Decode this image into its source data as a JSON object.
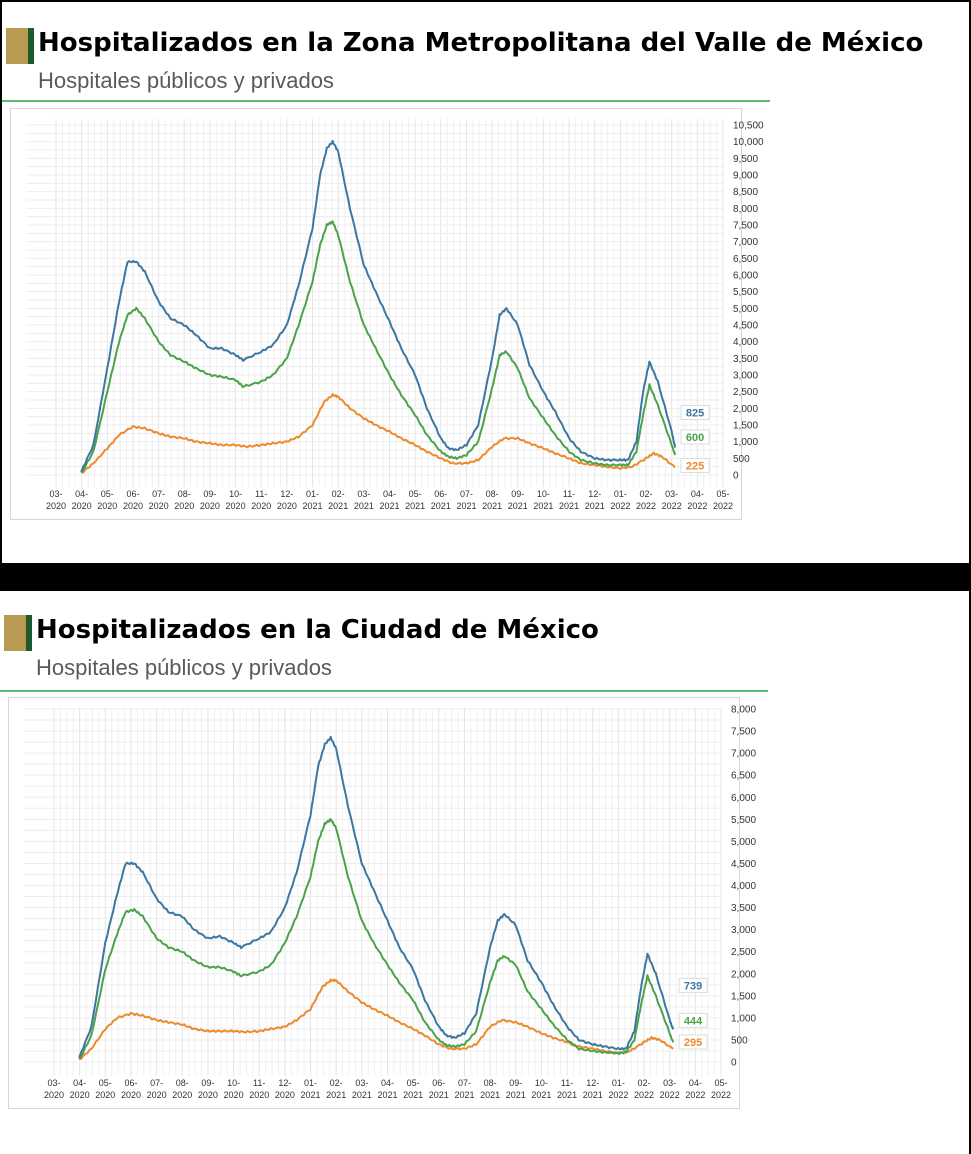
{
  "colors": {
    "total": "#3b77a1",
    "green": "#4aa34a",
    "orange": "#ed8a2c",
    "accent_gold": "#b89a52",
    "accent_green": "#1f5a2c",
    "rule": "#5cb875"
  },
  "panels": [
    {
      "title": "Hospitalizados en la Zona Metropolitana del Valle de México",
      "subtitle": "Hospitales públicos y privados"
    },
    {
      "title": "Hospitalizados en la Ciudad de México",
      "subtitle": "Hospitales públicos y privados"
    }
  ],
  "chart_data": [
    {
      "type": "line",
      "title": "Hospitalizados en la Zona Metropolitana del Valle de México",
      "subtitle": "Hospitales públicos y privados",
      "x_axis": {
        "type": "month",
        "start": "2020-03",
        "end": "2022-05",
        "tick_labels": [
          "03-2020",
          "04-2020",
          "05-2020",
          "06-2020",
          "07-2020",
          "08-2020",
          "09-2020",
          "10-2020",
          "11-2020",
          "12-2020",
          "01-2021",
          "02-2021",
          "03-2021",
          "04-2021",
          "05-2021",
          "06-2021",
          "07-2021",
          "08-2021",
          "09-2021",
          "10-2021",
          "11-2021",
          "12-2021",
          "01-2022",
          "02-2022",
          "03-2022",
          "04-2022",
          "05-2022"
        ]
      },
      "y_axis": {
        "position": "right",
        "min": 0,
        "max": 10500,
        "ticks": [
          0,
          500,
          1000,
          1500,
          2000,
          2500,
          3000,
          3500,
          4000,
          4500,
          5000,
          5500,
          6000,
          6500,
          7000,
          7500,
          8000,
          8500,
          9000,
          9500,
          10000,
          10500
        ],
        "tick_labels": [
          "0",
          "500",
          "1,000",
          "1,500",
          "2,000",
          "2,500",
          "3,000",
          "3,500",
          "4,000",
          "4,500",
          "5,000",
          "5,500",
          "6,000",
          "6,500",
          "7,000",
          "7,500",
          "8,000",
          "8,500",
          "9,000",
          "9,500",
          "10,000",
          "10,500"
        ]
      },
      "grid": true,
      "series": [
        {
          "color": "total",
          "end_label": "825",
          "x": [
            "2020-03-31",
            "2020-04-15",
            "2020-05-01",
            "2020-05-15",
            "2020-05-25",
            "2020-06-05",
            "2020-06-15",
            "2020-07-01",
            "2020-07-15",
            "2020-08-01",
            "2020-08-15",
            "2020-09-01",
            "2020-09-15",
            "2020-10-01",
            "2020-10-10",
            "2020-11-01",
            "2020-11-15",
            "2020-12-01",
            "2020-12-15",
            "2021-01-01",
            "2021-01-10",
            "2021-01-18",
            "2021-01-25",
            "2021-02-01",
            "2021-02-15",
            "2021-03-01",
            "2021-03-15",
            "2021-04-01",
            "2021-04-15",
            "2021-05-01",
            "2021-05-15",
            "2021-06-01",
            "2021-06-10",
            "2021-06-20",
            "2021-07-01",
            "2021-07-15",
            "2021-08-01",
            "2021-08-10",
            "2021-08-18",
            "2021-09-01",
            "2021-09-15",
            "2021-10-01",
            "2021-10-15",
            "2021-11-01",
            "2021-11-15",
            "2021-12-01",
            "2021-12-15",
            "2022-01-01",
            "2022-01-10",
            "2022-01-20",
            "2022-01-28",
            "2022-02-05",
            "2022-02-15",
            "2022-03-01",
            "2022-03-05"
          ],
          "y": [
            100,
            900,
            3200,
            5200,
            6400,
            6400,
            6100,
            5200,
            4700,
            4500,
            4200,
            3800,
            3800,
            3600,
            3450,
            3700,
            3900,
            4500,
            5700,
            7400,
            9000,
            9800,
            10000,
            9700,
            8000,
            6300,
            5500,
            4600,
            3800,
            3000,
            2000,
            1100,
            800,
            750,
            900,
            1500,
            3500,
            4800,
            5000,
            4500,
            3300,
            2500,
            1900,
            1100,
            700,
            500,
            450,
            450,
            450,
            1000,
            2500,
            3400,
            2800,
            1300,
            825
          ]
        },
        {
          "color": "green",
          "end_label": "600",
          "x": [
            "2020-03-31",
            "2020-04-15",
            "2020-05-01",
            "2020-05-15",
            "2020-05-25",
            "2020-06-05",
            "2020-06-15",
            "2020-07-01",
            "2020-07-15",
            "2020-08-01",
            "2020-08-15",
            "2020-09-01",
            "2020-09-15",
            "2020-10-01",
            "2020-10-10",
            "2020-11-01",
            "2020-11-15",
            "2020-12-01",
            "2020-12-15",
            "2021-01-01",
            "2021-01-10",
            "2021-01-18",
            "2021-01-25",
            "2021-02-01",
            "2021-02-15",
            "2021-03-01",
            "2021-03-15",
            "2021-04-01",
            "2021-04-15",
            "2021-05-01",
            "2021-05-15",
            "2021-06-01",
            "2021-06-10",
            "2021-06-20",
            "2021-07-01",
            "2021-07-15",
            "2021-08-01",
            "2021-08-10",
            "2021-08-18",
            "2021-09-01",
            "2021-09-15",
            "2021-10-01",
            "2021-10-15",
            "2021-11-01",
            "2021-11-15",
            "2021-12-01",
            "2021-12-15",
            "2022-01-01",
            "2022-01-10",
            "2022-01-20",
            "2022-01-28",
            "2022-02-05",
            "2022-02-15",
            "2022-03-01",
            "2022-03-05"
          ],
          "y": [
            50,
            700,
            2500,
            4000,
            4800,
            5000,
            4700,
            4000,
            3600,
            3400,
            3200,
            3000,
            2950,
            2850,
            2650,
            2800,
            3000,
            3500,
            4500,
            5800,
            6900,
            7500,
            7600,
            7200,
            5800,
            4500,
            3800,
            3000,
            2400,
            1800,
            1200,
            700,
            550,
            500,
            600,
            1000,
            2600,
            3600,
            3700,
            3200,
            2300,
            1700,
            1200,
            700,
            450,
            350,
            300,
            300,
            300,
            700,
            1800,
            2700,
            2100,
            900,
            600
          ]
        },
        {
          "color": "orange",
          "end_label": "225",
          "x": [
            "2020-03-31",
            "2020-04-15",
            "2020-05-01",
            "2020-05-15",
            "2020-06-01",
            "2020-06-15",
            "2020-07-01",
            "2020-07-15",
            "2020-08-01",
            "2020-08-15",
            "2020-09-01",
            "2020-09-15",
            "2020-10-01",
            "2020-10-15",
            "2020-11-01",
            "2020-11-15",
            "2020-12-01",
            "2020-12-15",
            "2021-01-01",
            "2021-01-15",
            "2021-01-25",
            "2021-02-01",
            "2021-02-15",
            "2021-03-01",
            "2021-03-15",
            "2021-04-01",
            "2021-04-15",
            "2021-05-01",
            "2021-05-15",
            "2021-06-01",
            "2021-06-15",
            "2021-07-01",
            "2021-07-15",
            "2021-08-01",
            "2021-08-15",
            "2021-09-01",
            "2021-09-15",
            "2021-10-01",
            "2021-10-15",
            "2021-11-01",
            "2021-11-15",
            "2021-12-01",
            "2021-12-15",
            "2022-01-01",
            "2022-01-15",
            "2022-02-01",
            "2022-02-10",
            "2022-02-20",
            "2022-03-05"
          ],
          "y": [
            50,
            350,
            800,
            1200,
            1450,
            1400,
            1250,
            1150,
            1100,
            1000,
            950,
            900,
            900,
            850,
            900,
            950,
            1000,
            1150,
            1500,
            2200,
            2400,
            2350,
            2000,
            1700,
            1500,
            1300,
            1100,
            900,
            700,
            500,
            350,
            350,
            450,
            850,
            1100,
            1100,
            950,
            800,
            650,
            500,
            350,
            300,
            250,
            200,
            250,
            500,
            650,
            550,
            225
          ]
        }
      ]
    },
    {
      "type": "line",
      "title": "Hospitalizados en la Ciudad de México",
      "subtitle": "Hospitales públicos y privados",
      "x_axis": {
        "type": "month",
        "start": "2020-03",
        "end": "2022-05",
        "tick_labels": [
          "03-2020",
          "04-2020",
          "05-2020",
          "06-2020",
          "07-2020",
          "08-2020",
          "09-2020",
          "10-2020",
          "11-2020",
          "12-2020",
          "01-2021",
          "02-2021",
          "03-2021",
          "04-2021",
          "05-2021",
          "06-2021",
          "07-2021",
          "08-2021",
          "09-2021",
          "10-2021",
          "11-2021",
          "12-2021",
          "01-2022",
          "02-2022",
          "03-2022",
          "04-2022",
          "05-2022"
        ]
      },
      "y_axis": {
        "position": "right",
        "min": 0,
        "max": 8000,
        "ticks": [
          0,
          500,
          1000,
          1500,
          2000,
          2500,
          3000,
          3500,
          4000,
          4500,
          5000,
          5500,
          6000,
          6500,
          7000,
          7500,
          8000
        ],
        "tick_labels": [
          "0",
          "500",
          "1,000",
          "1,500",
          "2,000",
          "2,500",
          "3,000",
          "3,500",
          "4,000",
          "4,500",
          "5,000",
          "5,500",
          "6,000",
          "6,500",
          "7,000",
          "7,500",
          "8,000"
        ]
      },
      "grid": true,
      "series": [
        {
          "color": "total",
          "end_label": "739",
          "x": [
            "2020-03-31",
            "2020-04-15",
            "2020-05-01",
            "2020-05-15",
            "2020-05-25",
            "2020-06-05",
            "2020-06-15",
            "2020-07-01",
            "2020-07-15",
            "2020-08-01",
            "2020-08-15",
            "2020-09-01",
            "2020-09-15",
            "2020-10-01",
            "2020-10-10",
            "2020-11-01",
            "2020-11-15",
            "2020-12-01",
            "2020-12-15",
            "2021-01-01",
            "2021-01-10",
            "2021-01-18",
            "2021-01-25",
            "2021-02-01",
            "2021-02-15",
            "2021-03-01",
            "2021-03-15",
            "2021-04-01",
            "2021-04-15",
            "2021-05-01",
            "2021-05-15",
            "2021-06-01",
            "2021-06-10",
            "2021-06-20",
            "2021-07-01",
            "2021-07-15",
            "2021-08-01",
            "2021-08-10",
            "2021-08-18",
            "2021-09-01",
            "2021-09-15",
            "2021-10-01",
            "2021-10-15",
            "2021-11-01",
            "2021-11-15",
            "2021-12-01",
            "2021-12-15",
            "2022-01-01",
            "2022-01-10",
            "2022-01-20",
            "2022-01-28",
            "2022-02-05",
            "2022-02-15",
            "2022-03-01",
            "2022-03-05"
          ],
          "y": [
            100,
            800,
            2700,
            3800,
            4500,
            4500,
            4300,
            3700,
            3400,
            3300,
            3000,
            2800,
            2850,
            2700,
            2600,
            2800,
            2950,
            3500,
            4300,
            5600,
            6700,
            7200,
            7350,
            7100,
            5800,
            4500,
            3900,
            3200,
            2600,
            2100,
            1400,
            800,
            600,
            550,
            650,
            1100,
            2600,
            3200,
            3350,
            3100,
            2300,
            1800,
            1300,
            800,
            500,
            400,
            350,
            300,
            300,
            700,
            1700,
            2450,
            2000,
            950,
            739
          ]
        },
        {
          "color": "green",
          "end_label": "444",
          "x": [
            "2020-03-31",
            "2020-04-15",
            "2020-05-01",
            "2020-05-15",
            "2020-05-25",
            "2020-06-05",
            "2020-06-15",
            "2020-07-01",
            "2020-07-15",
            "2020-08-01",
            "2020-08-15",
            "2020-09-01",
            "2020-09-15",
            "2020-10-01",
            "2020-10-10",
            "2020-11-01",
            "2020-11-15",
            "2020-12-01",
            "2020-12-15",
            "2021-01-01",
            "2021-01-10",
            "2021-01-18",
            "2021-01-25",
            "2021-02-01",
            "2021-02-15",
            "2021-03-01",
            "2021-03-15",
            "2021-04-01",
            "2021-04-15",
            "2021-05-01",
            "2021-05-15",
            "2021-06-01",
            "2021-06-10",
            "2021-06-20",
            "2021-07-01",
            "2021-07-15",
            "2021-08-01",
            "2021-08-10",
            "2021-08-18",
            "2021-09-01",
            "2021-09-15",
            "2021-10-01",
            "2021-10-15",
            "2021-11-01",
            "2021-11-15",
            "2021-12-01",
            "2021-12-15",
            "2022-01-01",
            "2022-01-10",
            "2022-01-20",
            "2022-01-28",
            "2022-02-05",
            "2022-02-15",
            "2022-03-01",
            "2022-03-05"
          ],
          "y": [
            50,
            600,
            2100,
            2900,
            3400,
            3450,
            3300,
            2800,
            2600,
            2500,
            2300,
            2150,
            2150,
            2050,
            1950,
            2050,
            2200,
            2700,
            3300,
            4200,
            5000,
            5400,
            5500,
            5300,
            4200,
            3200,
            2700,
            2200,
            1800,
            1400,
            900,
            500,
            380,
            350,
            400,
            700,
            1800,
            2300,
            2400,
            2200,
            1600,
            1200,
            850,
            500,
            300,
            250,
            220,
            200,
            220,
            500,
            1300,
            1950,
            1500,
            650,
            444
          ]
        },
        {
          "color": "orange",
          "end_label": "295",
          "x": [
            "2020-03-31",
            "2020-04-15",
            "2020-05-01",
            "2020-05-15",
            "2020-06-01",
            "2020-06-15",
            "2020-07-01",
            "2020-07-15",
            "2020-08-01",
            "2020-08-15",
            "2020-09-01",
            "2020-09-15",
            "2020-10-01",
            "2020-10-15",
            "2020-11-01",
            "2020-11-15",
            "2020-12-01",
            "2020-12-15",
            "2021-01-01",
            "2021-01-15",
            "2021-01-25",
            "2021-02-01",
            "2021-02-15",
            "2021-03-01",
            "2021-03-15",
            "2021-04-01",
            "2021-04-15",
            "2021-05-01",
            "2021-05-15",
            "2021-06-01",
            "2021-06-15",
            "2021-07-01",
            "2021-07-15",
            "2021-08-01",
            "2021-08-15",
            "2021-09-01",
            "2021-09-15",
            "2021-10-01",
            "2021-10-15",
            "2021-11-01",
            "2021-11-15",
            "2021-12-01",
            "2021-12-15",
            "2022-01-01",
            "2022-01-15",
            "2022-02-01",
            "2022-02-10",
            "2022-02-20",
            "2022-03-05"
          ],
          "y": [
            50,
            300,
            750,
            1000,
            1100,
            1050,
            950,
            900,
            850,
            750,
            700,
            700,
            700,
            680,
            700,
            750,
            800,
            950,
            1200,
            1700,
            1850,
            1850,
            1600,
            1350,
            1200,
            1050,
            900,
            750,
            600,
            400,
            300,
            300,
            400,
            800,
            950,
            900,
            800,
            650,
            550,
            450,
            350,
            300,
            250,
            200,
            250,
            450,
            550,
            500,
            295
          ]
        }
      ]
    }
  ]
}
